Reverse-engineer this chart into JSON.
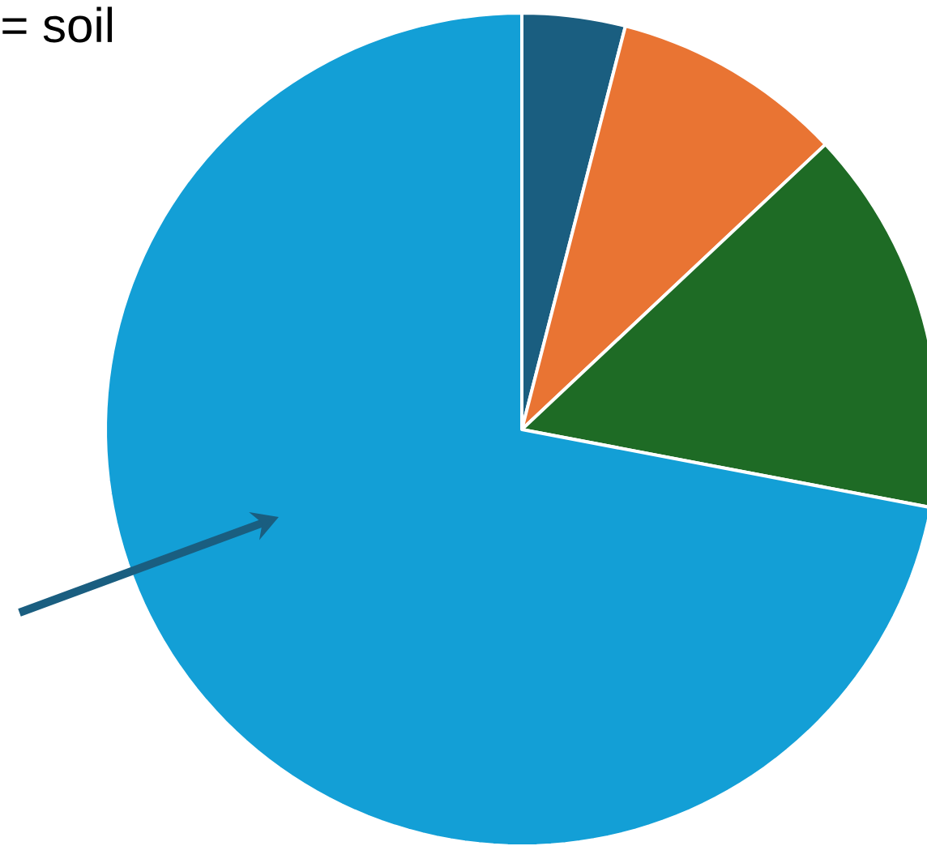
{
  "chart_data": {
    "type": "pie",
    "categories": [
      null,
      null,
      null,
      null
    ],
    "values": [
      4,
      9,
      15,
      72
    ],
    "colors": [
      "#1a5e80",
      "#e97433",
      "#1e6b25",
      "#139fd6"
    ],
    "annotations": [
      "= soil"
    ]
  }
}
